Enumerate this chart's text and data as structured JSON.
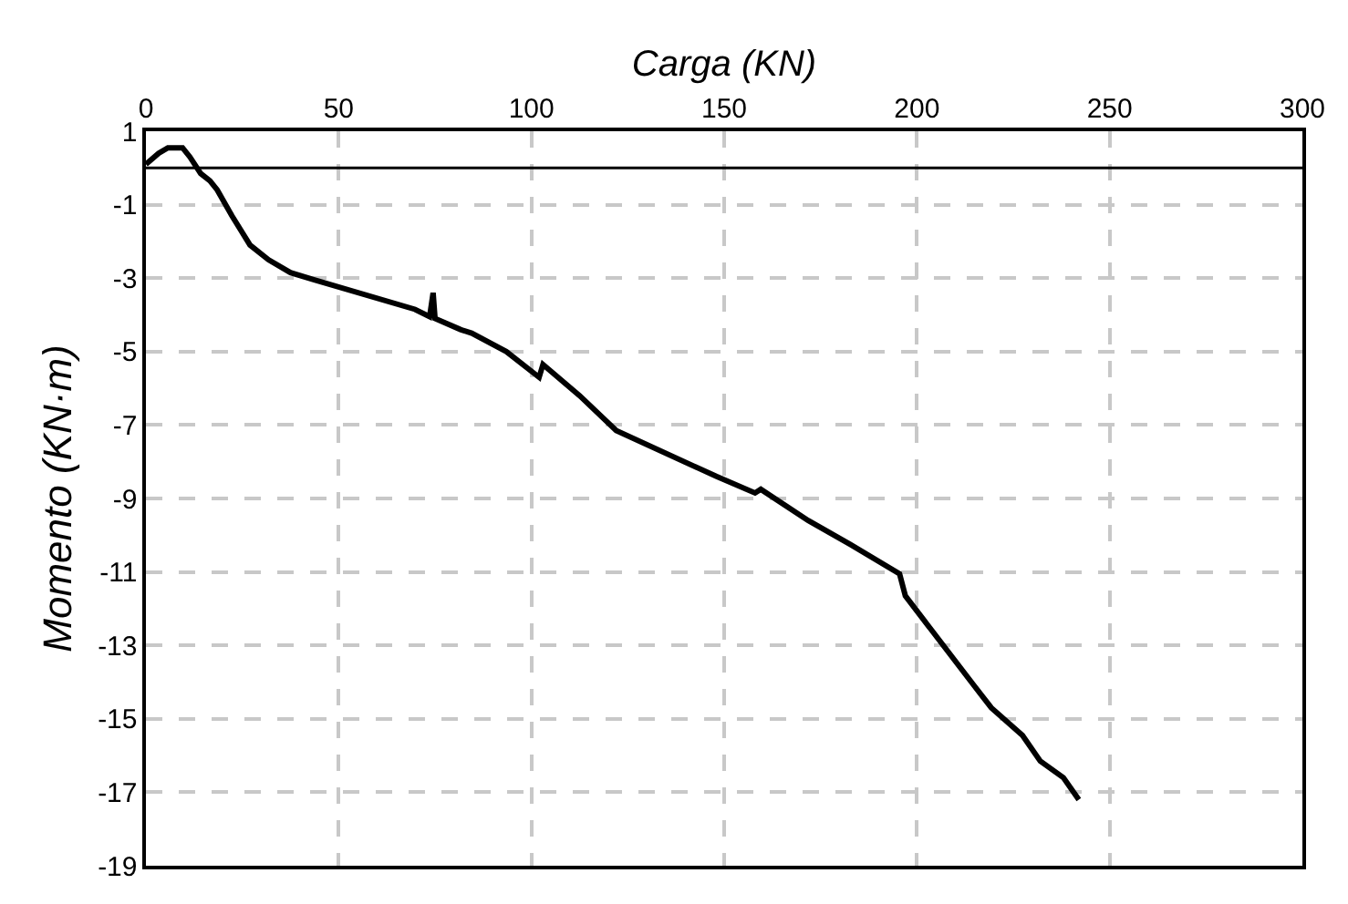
{
  "chart_data": {
    "type": "line",
    "xlabel": "Carga (KN)",
    "ylabel": "Momento (KN·m)",
    "xlim": [
      0,
      300
    ],
    "xticks": [
      0,
      50,
      100,
      150,
      200,
      250,
      300
    ],
    "ylim": [
      -19,
      1
    ],
    "yticks": [
      1,
      -1,
      -3,
      -5,
      -7,
      -9,
      -11,
      -13,
      -15,
      -17,
      -19
    ],
    "grid": true,
    "marker": "none",
    "line_style": "solid",
    "ref_lines": [
      {
        "axis": "y",
        "value": 0,
        "color": "#000000"
      }
    ],
    "series": [
      {
        "color": "#000000",
        "x": [
          0,
          3.3,
          5.7,
          9.5,
          11.4,
          14.2,
          16.6,
          18.5,
          22.3,
          27,
          31.8,
          37.5,
          43.7,
          69.8,
          73.6,
          74.5,
          75,
          81.6,
          84.5,
          93.5,
          102,
          103,
          112.5,
          122,
          148,
          158,
          159.5,
          171.8,
          182.7,
          195.5,
          197,
          214.5,
          219.3,
          227.4,
          232,
          238,
          242
        ],
        "values": [
          0.1,
          0.4,
          0.55,
          0.55,
          0.3,
          -0.15,
          -0.35,
          -0.6,
          -1.3,
          -2.1,
          -2.5,
          -2.85,
          -3.05,
          -3.85,
          -4.05,
          -3.4,
          -4.1,
          -4.4,
          -4.5,
          -5.0,
          -5.7,
          -5.35,
          -6.2,
          -7.15,
          -8.4,
          -8.85,
          -8.75,
          -9.6,
          -10.25,
          -11.05,
          -11.65,
          -14.05,
          -14.7,
          -15.45,
          -16.15,
          -16.6,
          -17.2
        ]
      }
    ]
  }
}
